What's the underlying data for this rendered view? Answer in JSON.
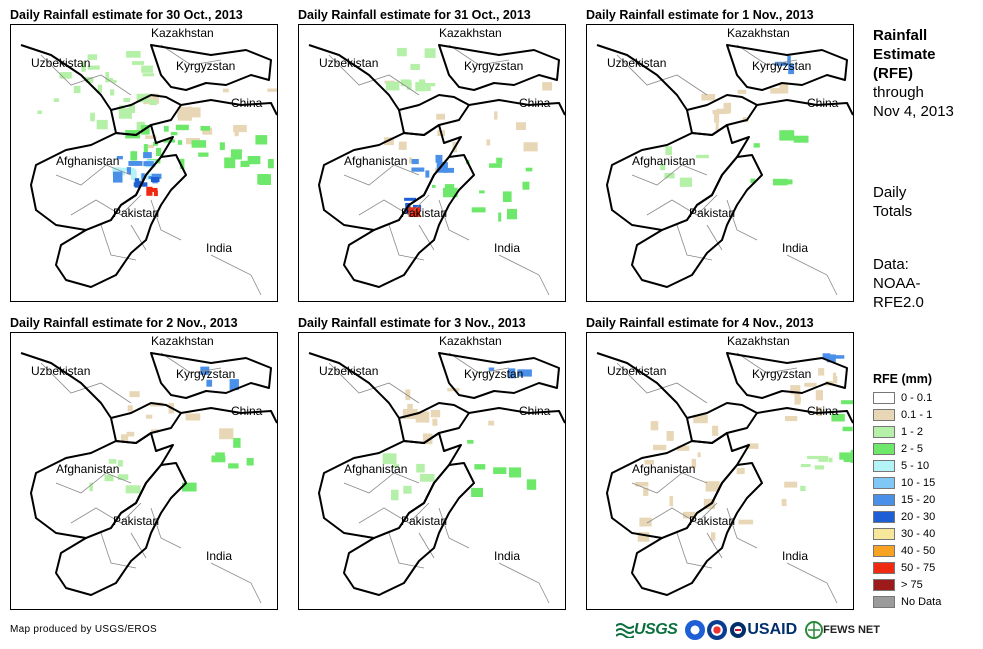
{
  "panels": [
    {
      "title": "Daily Rainfall estimate for 30 Oct., 2013",
      "rain": "heavy"
    },
    {
      "title": "Daily Rainfall estimate for 31 Oct., 2013",
      "rain": "moderate"
    },
    {
      "title": "Daily Rainfall estimate for 1 Nov., 2013",
      "rain": "light"
    },
    {
      "title": "Daily Rainfall estimate for 2 Nov., 2013",
      "rain": "light"
    },
    {
      "title": "Daily Rainfall estimate for 3 Nov., 2013",
      "rain": "light"
    },
    {
      "title": "Daily Rainfall estimate for 4 Nov., 2013",
      "rain": "widespread"
    }
  ],
  "places": {
    "kazakhstan": "Kazakhstan",
    "uzbekistan": "Uzbekistan",
    "kyrgyzstan": "Kyrgyzstan",
    "china": "China",
    "afghanistan": "Afghanistan",
    "pakistan": "Pakistan",
    "india": "India"
  },
  "side": {
    "title_line1": "Rainfall",
    "title_line2": "Estimate",
    "title_line3": "(RFE)",
    "through_line1": "through",
    "through_line2": "Nov 4, 2013",
    "totals_line1": "Daily",
    "totals_line2": "Totals",
    "data_line1": "Data:",
    "data_line2": "NOAA-",
    "data_line3": "RFE2.0"
  },
  "legend": {
    "title": "RFE (mm)",
    "items": [
      {
        "label": "0 - 0.1",
        "color": "#ffffff"
      },
      {
        "label": "0.1 - 1",
        "color": "#e8d7b6"
      },
      {
        "label": "1 - 2",
        "color": "#b5f0a8"
      },
      {
        "label": "2 - 5",
        "color": "#6ee86a"
      },
      {
        "label": "5 - 10",
        "color": "#b4f3f7"
      },
      {
        "label": "10 - 15",
        "color": "#7fc8f5"
      },
      {
        "label": "15 - 20",
        "color": "#4a90e8"
      },
      {
        "label": "20 - 30",
        "color": "#1f5fd6"
      },
      {
        "label": "30 - 40",
        "color": "#f7e79b"
      },
      {
        "label": "40 - 50",
        "color": "#f7a321"
      },
      {
        "label": "50 - 75",
        "color": "#f02a10"
      },
      {
        "label": "> 75",
        "color": "#9c1a1a"
      },
      {
        "label": "No Data",
        "color": "#9b9b9b"
      }
    ]
  },
  "footer": {
    "credit": "Map produced by USGS/EROS",
    "logo_usgs": "USGS",
    "logo_usaid": "USAID",
    "logo_fews": "FEWS NET"
  }
}
